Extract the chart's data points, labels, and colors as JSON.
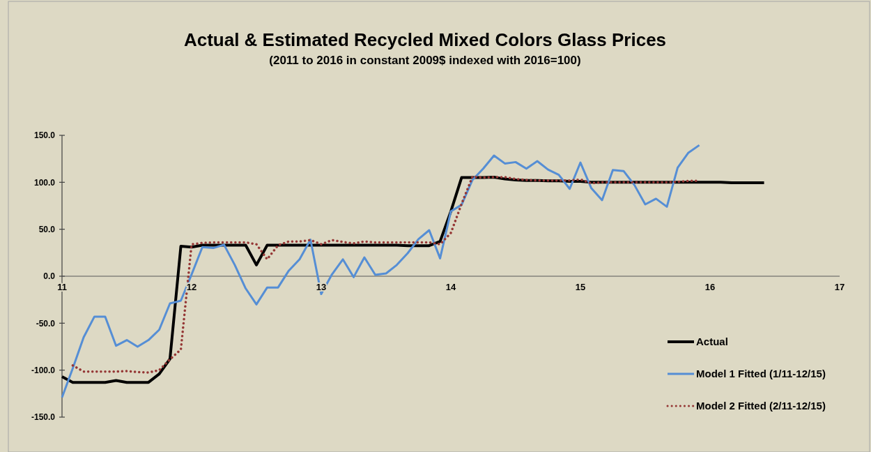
{
  "chart_data": {
    "type": "line",
    "title": "Actual & Estimated Recycled Mixed Colors Glass Prices",
    "subtitle": "(2011 to 2016 in constant 2009$ indexed with 2016=100)",
    "x": [
      11,
      11.083,
      11.167,
      11.25,
      11.333,
      11.417,
      11.5,
      11.583,
      11.667,
      11.75,
      11.833,
      11.917,
      12,
      12.083,
      12.167,
      12.25,
      12.333,
      12.417,
      12.5,
      12.583,
      12.667,
      12.75,
      12.833,
      12.917,
      13,
      13.083,
      13.167,
      13.25,
      13.333,
      13.417,
      13.5,
      13.583,
      13.667,
      13.75,
      13.833,
      13.917,
      14,
      14.083,
      14.167,
      14.25,
      14.333,
      14.417,
      14.5,
      14.583,
      14.667,
      14.75,
      14.833,
      14.917,
      15,
      15.083,
      15.167,
      15.25,
      15.333,
      15.417,
      15.5,
      15.583,
      15.667,
      15.75,
      15.833,
      15.917,
      16,
      16.083,
      16.167,
      16.25,
      16.333,
      16.417
    ],
    "series": [
      {
        "name": "Actual",
        "color": "#000000",
        "line_style": "solid",
        "values": [
          -107,
          -113,
          -113,
          -113,
          -113,
          -111,
          -113,
          -113,
          -113,
          -104,
          -88,
          32,
          31,
          33,
          33,
          33,
          33,
          33,
          12,
          33,
          33,
          33,
          33,
          33,
          33,
          33,
          33,
          33,
          33,
          33,
          33,
          33,
          32.5,
          32.5,
          32.5,
          37,
          69,
          105,
          105,
          105,
          105.5,
          103.5,
          102.5,
          102,
          102,
          101.5,
          101.5,
          101,
          101,
          100,
          100,
          100,
          100,
          100,
          100,
          100,
          100,
          100,
          100,
          100,
          100,
          100,
          99.5,
          99.5,
          99.5,
          99.5
        ]
      },
      {
        "name": "Model 1 Fitted (1/11-12/15)",
        "color": "#558ed5",
        "line_style": "solid",
        "values": [
          -129,
          -98,
          -65,
          -43,
          -43,
          -74,
          -68,
          -75,
          -68,
          -57,
          -29,
          -26,
          2,
          31,
          30,
          33.5,
          12,
          -13,
          -30,
          -12,
          -12,
          6,
          18,
          39,
          -19,
          2,
          18,
          -1,
          20,
          1.5,
          3,
          12,
          24.5,
          39.5,
          49,
          19,
          69,
          76,
          102.5,
          114.5,
          128.5,
          120,
          121.5,
          114.5,
          122.5,
          113.5,
          108,
          93,
          121,
          94,
          81,
          113,
          112,
          97,
          76.5,
          82.5,
          74,
          115.5,
          131.5,
          139.5,
          null,
          null,
          null,
          null,
          null,
          null
        ]
      },
      {
        "name": "Model 2 Fitted (2/11-12/15)",
        "color": "#953735",
        "line_style": "dotted",
        "values": [
          null,
          -95,
          -101.5,
          -101.5,
          -101.5,
          -101.5,
          -101,
          -102,
          -102.5,
          -100,
          -88.5,
          -78,
          34,
          35.5,
          36,
          36,
          36,
          36,
          34,
          18,
          33,
          37,
          37,
          38.5,
          34,
          38.5,
          36.5,
          35,
          37,
          36,
          36,
          36,
          36,
          36,
          36,
          34,
          46,
          77,
          106,
          105,
          105.5,
          105.5,
          103.5,
          102.5,
          102,
          102,
          102,
          102,
          103,
          99,
          100,
          100,
          100,
          100,
          100,
          100,
          100,
          100.5,
          101.5,
          101.5,
          null,
          null,
          null,
          null,
          null,
          null
        ]
      }
    ],
    "xlim": [
      11,
      17
    ],
    "xticks": [
      11,
      12,
      13,
      14,
      15,
      16,
      17
    ],
    "ylim": [
      -150,
      150
    ],
    "yticks": [
      {
        "value": -150,
        "label": "-150.0"
      },
      {
        "value": -100,
        "label": "-100.0"
      },
      {
        "value": -50,
        "label": "-50.0"
      },
      {
        "value": 0,
        "label": "0.0"
      },
      {
        "value": 50,
        "label": "50.0"
      },
      {
        "value": 100,
        "label": "100.0"
      },
      {
        "value": 150,
        "label": "150.0"
      }
    ],
    "grid": false,
    "legend": "bottom right",
    "marker": "none"
  }
}
